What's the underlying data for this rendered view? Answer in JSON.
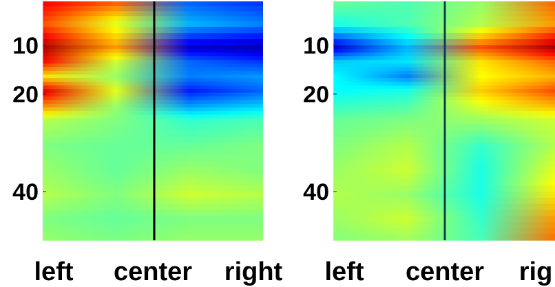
{
  "chart_data": [
    {
      "type": "heatmap",
      "title": "",
      "xlabel": "",
      "ylabel": "",
      "x_categories": [
        "left",
        "center",
        "right"
      ],
      "y_ticks": [
        10,
        20,
        40
      ],
      "ylim": [
        1,
        50
      ],
      "midline": "center",
      "colormap": "jet",
      "value_range": [
        -1,
        1
      ],
      "rows": [
        {
          "y": 1,
          "values": [
            0.75,
            0.55,
            -0.55,
            -0.65
          ]
        },
        {
          "y": 5,
          "values": [
            0.6,
            0.2,
            -0.4,
            -0.5
          ]
        },
        {
          "y": 10,
          "values": [
            0.92,
            0.45,
            -0.85,
            -0.9
          ]
        },
        {
          "y": 13,
          "values": [
            0.75,
            0.15,
            -0.55,
            -0.65
          ]
        },
        {
          "y": 16,
          "values": [
            0.3,
            0.05,
            -0.5,
            -0.45
          ]
        },
        {
          "y": 19,
          "values": [
            0.82,
            0.2,
            -0.7,
            -0.55
          ]
        },
        {
          "y": 22,
          "values": [
            0.5,
            0.05,
            -0.45,
            -0.35
          ]
        },
        {
          "y": 25,
          "values": [
            0.1,
            0.0,
            -0.15,
            -0.1
          ]
        },
        {
          "y": 30,
          "values": [
            0.0,
            -0.05,
            -0.05,
            0.0
          ]
        },
        {
          "y": 35,
          "values": [
            0.05,
            -0.05,
            0.05,
            0.0
          ]
        },
        {
          "y": 40,
          "values": [
            0.1,
            0.0,
            0.15,
            0.1
          ]
        },
        {
          "y": 45,
          "values": [
            0.0,
            -0.05,
            0.0,
            0.0
          ]
        },
        {
          "y": 50,
          "values": [
            0.05,
            0.0,
            0.05,
            0.05
          ]
        }
      ]
    },
    {
      "type": "heatmap",
      "title": "",
      "xlabel": "",
      "ylabel": "",
      "x_categories": [
        "left",
        "center",
        "rig"
      ],
      "y_ticks": [
        10,
        20,
        40
      ],
      "ylim": [
        1,
        50
      ],
      "midline": "center",
      "colormap": "jet",
      "value_range": [
        -1,
        1
      ],
      "rows": [
        {
          "y": 1,
          "values": [
            -0.05,
            -0.1,
            0.05,
            0.55
          ]
        },
        {
          "y": 5,
          "values": [
            -0.2,
            -0.1,
            0.1,
            0.45
          ]
        },
        {
          "y": 10,
          "values": [
            -0.85,
            -0.4,
            0.6,
            0.92
          ]
        },
        {
          "y": 13,
          "values": [
            -0.35,
            -0.3,
            0.3,
            0.55
          ]
        },
        {
          "y": 16,
          "values": [
            -0.25,
            -0.5,
            0.25,
            0.4
          ]
        },
        {
          "y": 19,
          "values": [
            -0.25,
            -0.2,
            0.35,
            0.6
          ]
        },
        {
          "y": 22,
          "values": [
            -0.15,
            -0.1,
            0.2,
            0.4
          ]
        },
        {
          "y": 25,
          "values": [
            -0.05,
            0.0,
            0.05,
            0.15
          ]
        },
        {
          "y": 30,
          "values": [
            0.0,
            0.1,
            -0.15,
            0.1
          ]
        },
        {
          "y": 35,
          "values": [
            0.05,
            0.15,
            -0.2,
            0.2
          ]
        },
        {
          "y": 40,
          "values": [
            0.1,
            0.05,
            -0.2,
            0.3
          ]
        },
        {
          "y": 45,
          "values": [
            0.05,
            0.15,
            -0.15,
            0.45
          ]
        },
        {
          "y": 50,
          "values": [
            0.0,
            0.05,
            -0.1,
            0.55
          ]
        }
      ]
    }
  ]
}
